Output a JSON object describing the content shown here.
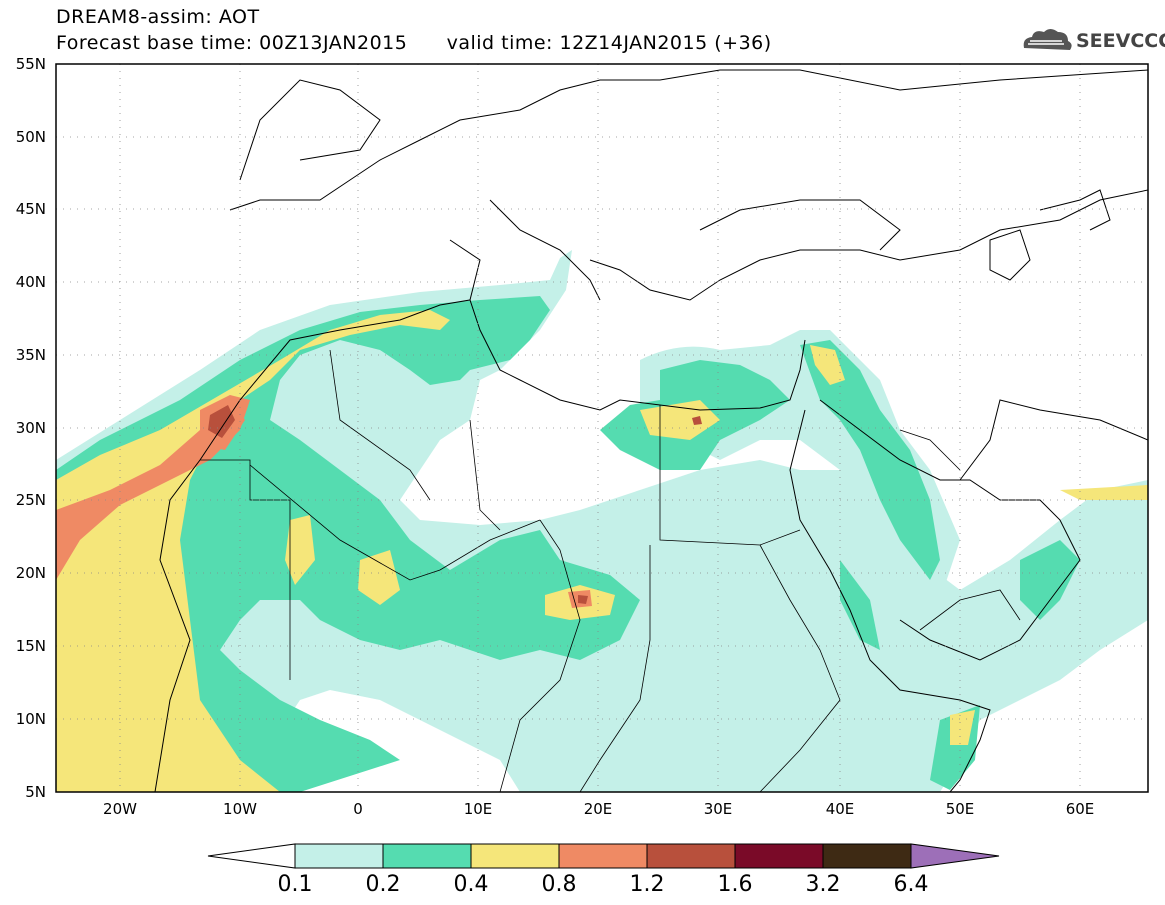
{
  "header": {
    "title_line1": "DREAM8-assim: AOT",
    "title_line2": "Forecast base time: 00Z13JAN2015      valid time: 12Z14JAN2015 (+36)",
    "logo_text": "SEEVCCC"
  },
  "axes": {
    "lat_labels": [
      "55N",
      "50N",
      "45N",
      "40N",
      "35N",
      "30N",
      "25N",
      "20N",
      "15N",
      "10N",
      "5N"
    ],
    "lon_labels": [
      "20W",
      "10W",
      "0",
      "10E",
      "20E",
      "30E",
      "40E",
      "50E",
      "60E"
    ]
  },
  "legend": {
    "labels": [
      "0.1",
      "0.2",
      "0.4",
      "0.8",
      "1.2",
      "1.6",
      "3.2",
      "6.4"
    ],
    "colors": [
      "#ffffff",
      "#c4f0e8",
      "#55dcb0",
      "#f5e67a",
      "#ef8a64",
      "#b8503c",
      "#7a0a28",
      "#3e2a14",
      "#9d6fb8"
    ]
  },
  "colors": {
    "c01": "#c4f0e8",
    "c02": "#55dcb0",
    "c04": "#f5e67a",
    "c08": "#ef8a64",
    "c12": "#b8503c"
  }
}
